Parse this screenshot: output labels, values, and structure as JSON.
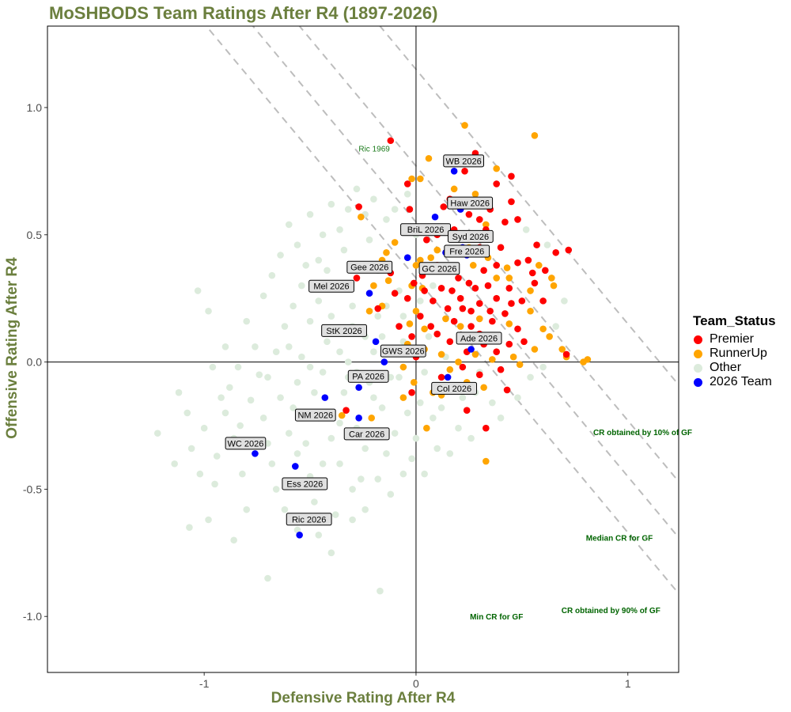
{
  "chart_data": {
    "type": "scatter",
    "title": "MoSHBODS Team Ratings After R4 (1897-2026)",
    "xlabel": "Defensive Rating After R4",
    "ylabel": "Offensive Rating After R4",
    "xlim": [
      -1.74,
      1.24
    ],
    "ylim": [
      -1.22,
      1.32
    ],
    "x_ticks": [
      -1,
      0,
      1
    ],
    "x_tick_labels": [
      "-1",
      "0",
      "1"
    ],
    "y_ticks": [
      -1.0,
      -0.5,
      0.0,
      0.5,
      1.0
    ],
    "y_tick_labels": [
      "-1.0",
      "-0.5",
      "0.0",
      "0.5",
      "1.0"
    ],
    "legend": {
      "title": "Team_Status",
      "placement": "right",
      "entries": [
        {
          "label": "Premier",
          "color": "#ff0000"
        },
        {
          "label": "RunnerUp",
          "color": "#ffa500"
        },
        {
          "label": "Other",
          "color": "#dcebdc"
        },
        {
          "label": "2026 Team",
          "color": "#0000ff"
        }
      ]
    },
    "colors": {
      "Premier": "#ff0000",
      "RunnerUp": "#ffa500",
      "Other": "#dcebdc",
      "2026 Team": "#0000ff"
    },
    "reference_lines": [
      {
        "label": "CR obtained by 10% of GF",
        "slope": -1,
        "intercept": 0.33,
        "label_x": 1.07,
        "label_y": -0.275
      },
      {
        "label": "Median CR for GF",
        "slope": -1,
        "intercept": 0.55,
        "label_x": 0.96,
        "label_y": -0.69
      },
      {
        "label": "CR obtained by 90% of GF",
        "slope": -1,
        "intercept": 0.77,
        "label_x": 0.92,
        "label_y": -0.975
      },
      {
        "label": "Min CR for GF",
        "slope": -1,
        "intercept": 1.15,
        "label_x": 0.38,
        "label_y": -1.0
      }
    ],
    "annotations": [
      {
        "text": "Ric 1969",
        "x": -0.16,
        "y": 0.84
      }
    ],
    "teams_2026": [
      {
        "label": "WB 2026",
        "x": 0.18,
        "y": 0.75
      },
      {
        "label": "Haw 2026",
        "x": 0.21,
        "y": 0.6
      },
      {
        "label": "BriL 2026",
        "x": 0.09,
        "y": 0.57
      },
      {
        "label": "Syd 2026",
        "x": 0.22,
        "y": 0.45
      },
      {
        "label": "GC 2026",
        "x": 0.14,
        "y": 0.43
      },
      {
        "label": "Gee 2026",
        "x": -0.04,
        "y": 0.41
      },
      {
        "label": "Fre 2026",
        "x": 0.24,
        "y": 0.42
      },
      {
        "label": "Mel 2026",
        "x": -0.22,
        "y": 0.27
      },
      {
        "label": "StK 2026",
        "x": -0.19,
        "y": 0.08
      },
      {
        "label": "Ade 2026",
        "x": 0.26,
        "y": 0.05
      },
      {
        "label": "GWS 2026",
        "x": -0.15,
        "y": 0.0
      },
      {
        "label": "PA 2026",
        "x": -0.27,
        "y": -0.1
      },
      {
        "label": "Col 2026",
        "x": 0.15,
        "y": -0.06
      },
      {
        "label": "NM 2026",
        "x": -0.43,
        "y": -0.14
      },
      {
        "label": "Car 2026",
        "x": -0.27,
        "y": -0.22
      },
      {
        "label": "WC 2026",
        "x": -0.76,
        "y": -0.36
      },
      {
        "label": "Ess 2026",
        "x": -0.57,
        "y": -0.41
      },
      {
        "label": "Ric 2026",
        "x": -0.55,
        "y": -0.68
      }
    ],
    "premiers": [
      [
        -0.12,
        0.87
      ],
      [
        0.23,
        0.75
      ],
      [
        0.28,
        0.82
      ],
      [
        0.45,
        0.73
      ],
      [
        0.38,
        0.7
      ],
      [
        -0.27,
        0.61
      ],
      [
        -0.04,
        0.7
      ],
      [
        -0.03,
        0.6
      ],
      [
        0.13,
        0.61
      ],
      [
        0.16,
        0.64
      ],
      [
        0.25,
        0.58
      ],
      [
        0.3,
        0.56
      ],
      [
        0.35,
        0.6
      ],
      [
        0.42,
        0.55
      ],
      [
        0.48,
        0.56
      ],
      [
        0.45,
        0.63
      ],
      [
        0.72,
        0.44
      ],
      [
        0.33,
        0.52
      ],
      [
        0.18,
        0.52
      ],
      [
        0.1,
        0.5
      ],
      [
        0.05,
        0.48
      ],
      [
        0.3,
        0.45
      ],
      [
        0.4,
        0.45
      ],
      [
        0.48,
        0.39
      ],
      [
        0.55,
        0.35
      ],
      [
        0.38,
        0.38
      ],
      [
        0.32,
        0.36
      ],
      [
        0.25,
        0.31
      ],
      [
        0.18,
        0.37
      ],
      [
        0.1,
        0.38
      ],
      [
        0.03,
        0.34
      ],
      [
        -0.01,
        0.31
      ],
      [
        0.12,
        0.29
      ],
      [
        0.17,
        0.28
      ],
      [
        0.21,
        0.25
      ],
      [
        0.28,
        0.29
      ],
      [
        0.34,
        0.3
      ],
      [
        0.44,
        0.29
      ],
      [
        0.5,
        0.24
      ],
      [
        0.6,
        0.24
      ],
      [
        0.45,
        0.23
      ],
      [
        0.38,
        0.25
      ],
      [
        0.3,
        0.23
      ],
      [
        0.22,
        0.21
      ],
      [
        0.15,
        0.21
      ],
      [
        0.08,
        0.24
      ],
      [
        0.04,
        0.28
      ],
      [
        -0.04,
        0.25
      ],
      [
        -0.1,
        0.27
      ],
      [
        -0.18,
        0.21
      ],
      [
        -0.12,
        0.35
      ],
      [
        -0.28,
        0.33
      ],
      [
        0.02,
        0.18
      ],
      [
        0.07,
        0.14
      ],
      [
        0.1,
        0.11
      ],
      [
        0.18,
        0.16
      ],
      [
        0.26,
        0.14
      ],
      [
        0.3,
        0.11
      ],
      [
        0.36,
        0.16
      ],
      [
        0.42,
        0.19
      ],
      [
        0.48,
        0.13
      ],
      [
        0.51,
        0.08
      ],
      [
        0.44,
        0.07
      ],
      [
        0.38,
        0.04
      ],
      [
        0.32,
        0.07
      ],
      [
        0.24,
        0.04
      ],
      [
        0.16,
        0.08
      ],
      [
        -0.08,
        0.14
      ],
      [
        -0.02,
        0.1
      ],
      [
        -0.05,
        0.04
      ],
      [
        0.0,
        0.02
      ],
      [
        0.22,
        -0.02
      ],
      [
        0.3,
        -0.05
      ],
      [
        0.4,
        -0.03
      ],
      [
        0.71,
        0.03
      ],
      [
        -0.02,
        -0.12
      ],
      [
        0.12,
        -0.06
      ],
      [
        0.24,
        -0.19
      ],
      [
        -0.33,
        -0.19
      ],
      [
        0.33,
        -0.26
      ],
      [
        0.43,
        -0.11
      ],
      [
        0.56,
        0.31
      ],
      [
        0.61,
        0.36
      ],
      [
        0.53,
        0.4
      ],
      [
        0.57,
        0.46
      ],
      [
        0.66,
        0.43
      ],
      [
        0.2,
        0.33
      ],
      [
        0.26,
        0.2
      ],
      [
        0.35,
        0.2
      ]
    ],
    "runnerups": [
      [
        0.23,
        0.93
      ],
      [
        0.56,
        0.89
      ],
      [
        0.06,
        0.8
      ],
      [
        -0.02,
        0.72
      ],
      [
        0.02,
        0.72
      ],
      [
        0.38,
        0.76
      ],
      [
        -0.26,
        0.57
      ],
      [
        0.18,
        0.68
      ],
      [
        0.28,
        0.66
      ],
      [
        0.33,
        0.54
      ],
      [
        -0.1,
        0.47
      ],
      [
        -0.14,
        0.43
      ],
      [
        -0.16,
        0.4
      ],
      [
        0.02,
        0.4
      ],
      [
        0.0,
        0.38
      ],
      [
        0.07,
        0.41
      ],
      [
        0.27,
        0.38
      ],
      [
        0.38,
        0.33
      ],
      [
        0.44,
        0.33
      ],
      [
        0.58,
        0.38
      ],
      [
        0.54,
        0.28
      ],
      [
        0.65,
        0.3
      ],
      [
        0.64,
        0.33
      ],
      [
        -0.02,
        0.3
      ],
      [
        0.03,
        0.29
      ],
      [
        -0.13,
        0.32
      ],
      [
        -0.2,
        0.3
      ],
      [
        -0.16,
        0.22
      ],
      [
        -0.22,
        0.2
      ],
      [
        0.0,
        0.2
      ],
      [
        0.04,
        0.13
      ],
      [
        -0.03,
        0.15
      ],
      [
        0.14,
        0.17
      ],
      [
        0.21,
        0.14
      ],
      [
        0.3,
        0.17
      ],
      [
        0.44,
        0.15
      ],
      [
        0.54,
        0.2
      ],
      [
        0.6,
        0.13
      ],
      [
        0.63,
        0.1
      ],
      [
        0.56,
        0.05
      ],
      [
        0.46,
        0.02
      ],
      [
        0.36,
        0.01
      ],
      [
        0.28,
        0.03
      ],
      [
        0.2,
        0.0
      ],
      [
        0.12,
        0.03
      ],
      [
        0.04,
        0.05
      ],
      [
        -0.04,
        0.07
      ],
      [
        0.16,
        -0.03
      ],
      [
        0.24,
        -0.08
      ],
      [
        0.32,
        -0.1
      ],
      [
        0.08,
        -0.12
      ],
      [
        -0.06,
        -0.02
      ],
      [
        -0.01,
        -0.08
      ],
      [
        0.49,
        -0.01
      ],
      [
        0.69,
        0.05
      ],
      [
        0.79,
        0.0
      ],
      [
        0.81,
        0.01
      ],
      [
        0.71,
        0.02
      ],
      [
        0.33,
        -0.39
      ],
      [
        -0.21,
        -0.22
      ],
      [
        -0.35,
        -0.21
      ],
      [
        0.05,
        -0.26
      ],
      [
        -0.06,
        -0.14
      ],
      [
        0.12,
        -0.13
      ],
      [
        0.43,
        0.37
      ],
      [
        0.34,
        0.41
      ],
      [
        0.25,
        0.45
      ],
      [
        0.1,
        0.44
      ]
    ],
    "others": [
      [
        -1.22,
        -0.28
      ],
      [
        -1.14,
        -0.4
      ],
      [
        -1.02,
        -0.44
      ],
      [
        -1.06,
        -0.34
      ],
      [
        -1.0,
        -0.26
      ],
      [
        -0.94,
        -0.37
      ],
      [
        -0.95,
        -0.48
      ],
      [
        -0.98,
        -0.62
      ],
      [
        -1.07,
        -0.65
      ],
      [
        -0.8,
        -0.58
      ],
      [
        -0.82,
        -0.44
      ],
      [
        -0.86,
        -0.3
      ],
      [
        -0.9,
        -0.2
      ],
      [
        -0.88,
        -0.1
      ],
      [
        -0.83,
        -0.25
      ],
      [
        -0.78,
        -0.15
      ],
      [
        -0.74,
        -0.05
      ],
      [
        -0.72,
        -0.22
      ],
      [
        -0.7,
        -0.32
      ],
      [
        -0.68,
        -0.4
      ],
      [
        -0.66,
        -0.5
      ],
      [
        -0.62,
        -0.58
      ],
      [
        -0.6,
        -0.28
      ],
      [
        -0.58,
        -0.18
      ],
      [
        -0.56,
        -0.08
      ],
      [
        -0.54,
        0.02
      ],
      [
        -0.52,
        -0.32
      ],
      [
        -0.5,
        -0.45
      ],
      [
        -0.48,
        -0.55
      ],
      [
        -0.46,
        -0.22
      ],
      [
        -0.44,
        -0.04
      ],
      [
        -0.42,
        0.08
      ],
      [
        -0.4,
        -0.3
      ],
      [
        -0.38,
        -0.6
      ],
      [
        -0.36,
        -0.4
      ],
      [
        -0.34,
        -0.12
      ],
      [
        -0.32,
        0.0
      ],
      [
        -0.3,
        0.14
      ],
      [
        -0.28,
        -0.26
      ],
      [
        -0.26,
        -0.46
      ],
      [
        -0.24,
        -0.34
      ],
      [
        -0.22,
        -0.08
      ],
      [
        -0.2,
        0.04
      ],
      [
        -0.18,
        0.18
      ],
      [
        -0.16,
        -0.18
      ],
      [
        -0.14,
        -0.36
      ],
      [
        -0.12,
        -0.52
      ],
      [
        -0.1,
        -0.28
      ],
      [
        -0.08,
        -0.06
      ],
      [
        -0.06,
        0.08
      ],
      [
        -0.04,
        -0.2
      ],
      [
        -0.02,
        -0.38
      ],
      [
        0.0,
        -0.3
      ],
      [
        0.02,
        -0.16
      ],
      [
        0.04,
        -0.04
      ],
      [
        0.06,
        0.1
      ],
      [
        0.08,
        -0.22
      ],
      [
        0.1,
        -0.34
      ],
      [
        0.12,
        -0.18
      ],
      [
        0.14,
        -0.1
      ],
      [
        -0.66,
        0.04
      ],
      [
        -0.62,
        0.14
      ],
      [
        -0.58,
        0.22
      ],
      [
        -0.54,
        0.3
      ],
      [
        -0.5,
        0.16
      ],
      [
        -0.46,
        0.24
      ],
      [
        -0.42,
        0.36
      ],
      [
        -0.38,
        0.3
      ],
      [
        -0.34,
        0.44
      ],
      [
        -0.3,
        0.22
      ],
      [
        -0.26,
        0.38
      ],
      [
        -0.22,
        0.48
      ],
      [
        -0.18,
        0.36
      ],
      [
        -0.14,
        0.56
      ],
      [
        -0.1,
        0.6
      ],
      [
        -0.06,
        0.52
      ],
      [
        -0.04,
        0.66
      ],
      [
        0.0,
        0.5
      ],
      [
        -0.76,
        0.06
      ],
      [
        -0.8,
        0.16
      ],
      [
        -0.72,
        0.26
      ],
      [
        -0.68,
        0.34
      ],
      [
        -0.64,
        0.42
      ],
      [
        -0.6,
        0.06
      ],
      [
        -0.84,
        -0.02
      ],
      [
        -0.9,
        0.06
      ],
      [
        -0.96,
        -0.02
      ],
      [
        -0.92,
        -0.14
      ],
      [
        -1.12,
        -0.12
      ],
      [
        -1.08,
        -0.2
      ],
      [
        -0.24,
        0.58
      ],
      [
        -0.2,
        0.64
      ],
      [
        -0.36,
        0.52
      ],
      [
        -0.44,
        0.5
      ],
      [
        -0.28,
        0.68
      ],
      [
        -0.32,
        0.6
      ],
      [
        -0.46,
        0.4
      ],
      [
        -0.52,
        0.38
      ],
      [
        -0.56,
        0.46
      ],
      [
        0.28,
        -0.12
      ],
      [
        0.36,
        -0.16
      ],
      [
        0.2,
        -0.26
      ],
      [
        0.4,
        -0.22
      ],
      [
        0.54,
        -0.06
      ],
      [
        0.6,
        -0.02
      ],
      [
        0.48,
        -0.14
      ],
      [
        0.66,
        0.14
      ],
      [
        0.7,
        0.24
      ],
      [
        0.62,
        0.46
      ],
      [
        0.52,
        0.52
      ],
      [
        -0.17,
        -0.9
      ],
      [
        -0.7,
        -0.85
      ],
      [
        -0.4,
        -0.75
      ],
      [
        -0.46,
        -0.68
      ],
      [
        -0.3,
        -0.62
      ],
      [
        -0.86,
        -0.7
      ],
      [
        -0.56,
        -0.66
      ],
      [
        -0.24,
        -0.58
      ],
      [
        -1.03,
        0.28
      ],
      [
        -0.98,
        0.2
      ],
      [
        -0.64,
        -0.14
      ],
      [
        -0.7,
        -0.06
      ],
      [
        -0.5,
        -0.02
      ],
      [
        -0.4,
        0.18
      ],
      [
        -0.36,
        0.04
      ],
      [
        -0.28,
        -0.04
      ],
      [
        -0.2,
        -0.14
      ],
      [
        -0.12,
        -0.06
      ],
      [
        -0.08,
        0.28
      ],
      [
        -0.16,
        0.1
      ],
      [
        -0.24,
        0.1
      ],
      [
        -0.32,
        -0.06
      ],
      [
        -0.48,
        -0.12
      ],
      [
        -0.56,
        -0.36
      ],
      [
        -0.44,
        -0.4
      ],
      [
        -0.36,
        -0.24
      ],
      [
        -0.06,
        -0.44
      ],
      [
        0.04,
        -0.44
      ],
      [
        -0.18,
        -0.46
      ],
      [
        -0.3,
        -0.5
      ],
      [
        0.16,
        -0.36
      ],
      [
        0.26,
        -0.3
      ],
      [
        -0.6,
        0.54
      ],
      [
        -0.5,
        0.58
      ],
      [
        -0.4,
        0.62
      ],
      [
        -0.14,
        0.22
      ],
      [
        -0.06,
        0.18
      ],
      [
        0.02,
        0.24
      ],
      [
        0.08,
        0.3
      ],
      [
        0.14,
        0.02
      ],
      [
        0.22,
        -0.14
      ],
      [
        0.3,
        -0.04
      ]
    ]
  }
}
